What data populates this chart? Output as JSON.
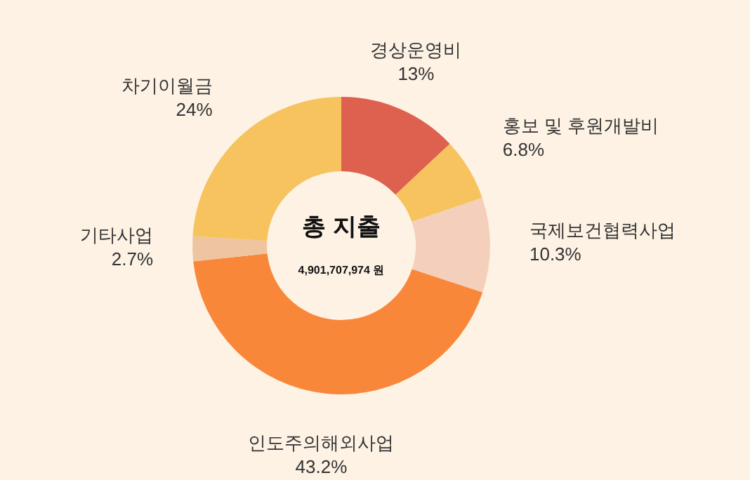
{
  "chart_data": {
    "type": "donut",
    "title": "총 지출",
    "subtitle": "4,901,707,974 원",
    "categories": [
      "경상운영비",
      "홍보 및 후원개발비",
      "국제보건협력사업",
      "인도주의해외사업",
      "기타사업",
      "차기이월금"
    ],
    "values": [
      13,
      6.8,
      10.3,
      43.2,
      2.7,
      24
    ],
    "value_labels": [
      "13%",
      "6.8%",
      "10.3%",
      "43.2%",
      "2.7%",
      "24%"
    ],
    "colors": [
      "#de6150",
      "#f6c35f",
      "#f4d0bc",
      "#f9873a",
      "#eec5a0",
      "#f6c35f"
    ],
    "legend": false
  }
}
